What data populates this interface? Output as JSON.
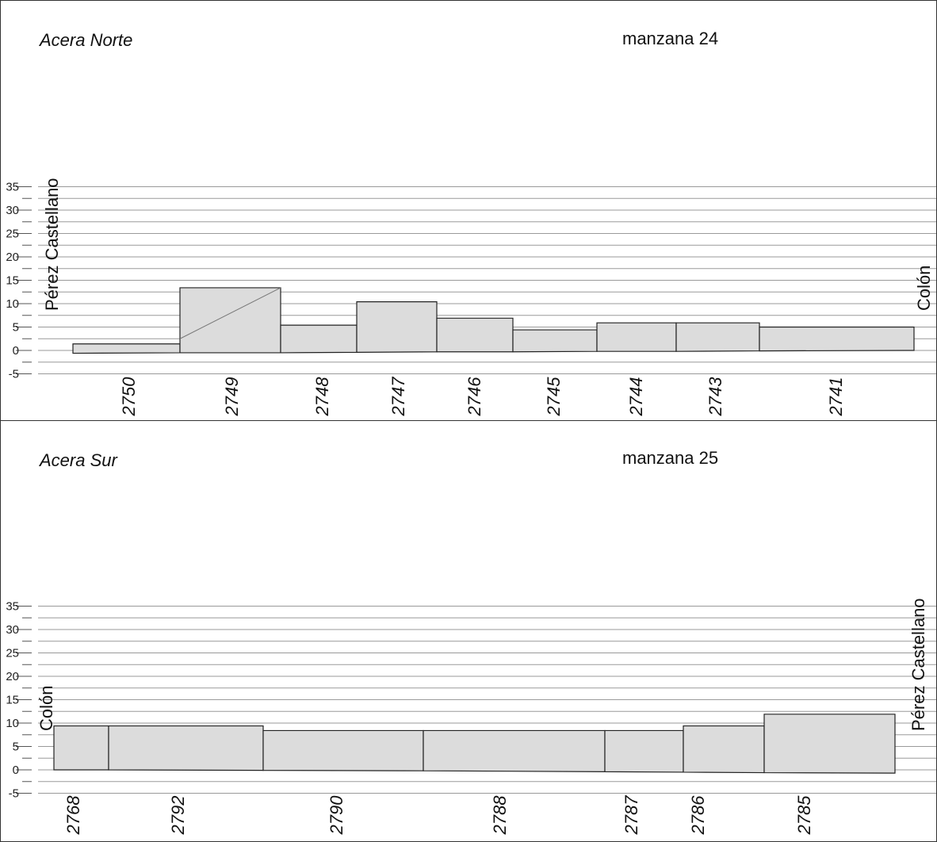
{
  "chart_data": [
    {
      "type": "bar",
      "panel": "north",
      "side_title": "Acera Norte",
      "block_title": "manzana 24",
      "street_left": "Pérez Castellano",
      "street_right": "Colón",
      "y_ticks": [
        "35",
        "30",
        "25",
        "20",
        "15",
        "10",
        "5",
        "0",
        "-5"
      ],
      "ylim": [
        -7.5,
        36
      ],
      "grid": true,
      "lots": [
        {
          "label": "2750",
          "top": 1.4,
          "base_left": -0.6,
          "base_right": -0.5
        },
        {
          "label": "2749",
          "top": 13.4,
          "base_left": -0.5,
          "base_right": -0.5,
          "diagonal_from": 2.5
        },
        {
          "label": "2748",
          "top": 5.4,
          "base_left": -0.5,
          "base_right": -0.4
        },
        {
          "label": "2747",
          "top": 10.4,
          "base_left": -0.4,
          "base_right": -0.3
        },
        {
          "label": "2746",
          "top": 6.9,
          "base_left": -0.3,
          "base_right": -0.3
        },
        {
          "label": "2745",
          "top": 4.4,
          "base_left": -0.3,
          "base_right": -0.2
        },
        {
          "label": "2744",
          "top": 5.9,
          "base_left": -0.2,
          "base_right": -0.2
        },
        {
          "label": "2743",
          "top": 5.9,
          "base_left": -0.2,
          "base_right": -0.1
        },
        {
          "label": "2741",
          "top": 5.0,
          "base_left": -0.1,
          "base_right": 0.0
        }
      ]
    },
    {
      "type": "bar",
      "panel": "south",
      "side_title": "Acera Sur",
      "block_title": "manzana 25",
      "street_left": "Colón",
      "street_right": "Pérez Castellano",
      "y_ticks": [
        "35",
        "30",
        "25",
        "20",
        "15",
        "10",
        "5",
        "0",
        "-5"
      ],
      "ylim": [
        -7.5,
        36
      ],
      "grid": true,
      "lots": [
        {
          "label": "2768",
          "top": 9.4,
          "base_left": 0.0,
          "base_right": 0.0
        },
        {
          "label": "2792",
          "top": 9.4,
          "base_left": 0.0,
          "base_right": -0.1
        },
        {
          "label": "2790",
          "top": 8.4,
          "base_left": -0.1,
          "base_right": -0.2
        },
        {
          "label": "2788",
          "top": 8.4,
          "base_left": -0.2,
          "base_right": -0.4
        },
        {
          "label": "2787",
          "top": 8.4,
          "base_left": -0.4,
          "base_right": -0.5
        },
        {
          "label": "2786",
          "top": 9.4,
          "base_left": -0.5,
          "base_right": -0.6
        },
        {
          "label": "2785",
          "top": 11.9,
          "base_left": -0.6,
          "base_right": -0.7
        }
      ]
    }
  ]
}
